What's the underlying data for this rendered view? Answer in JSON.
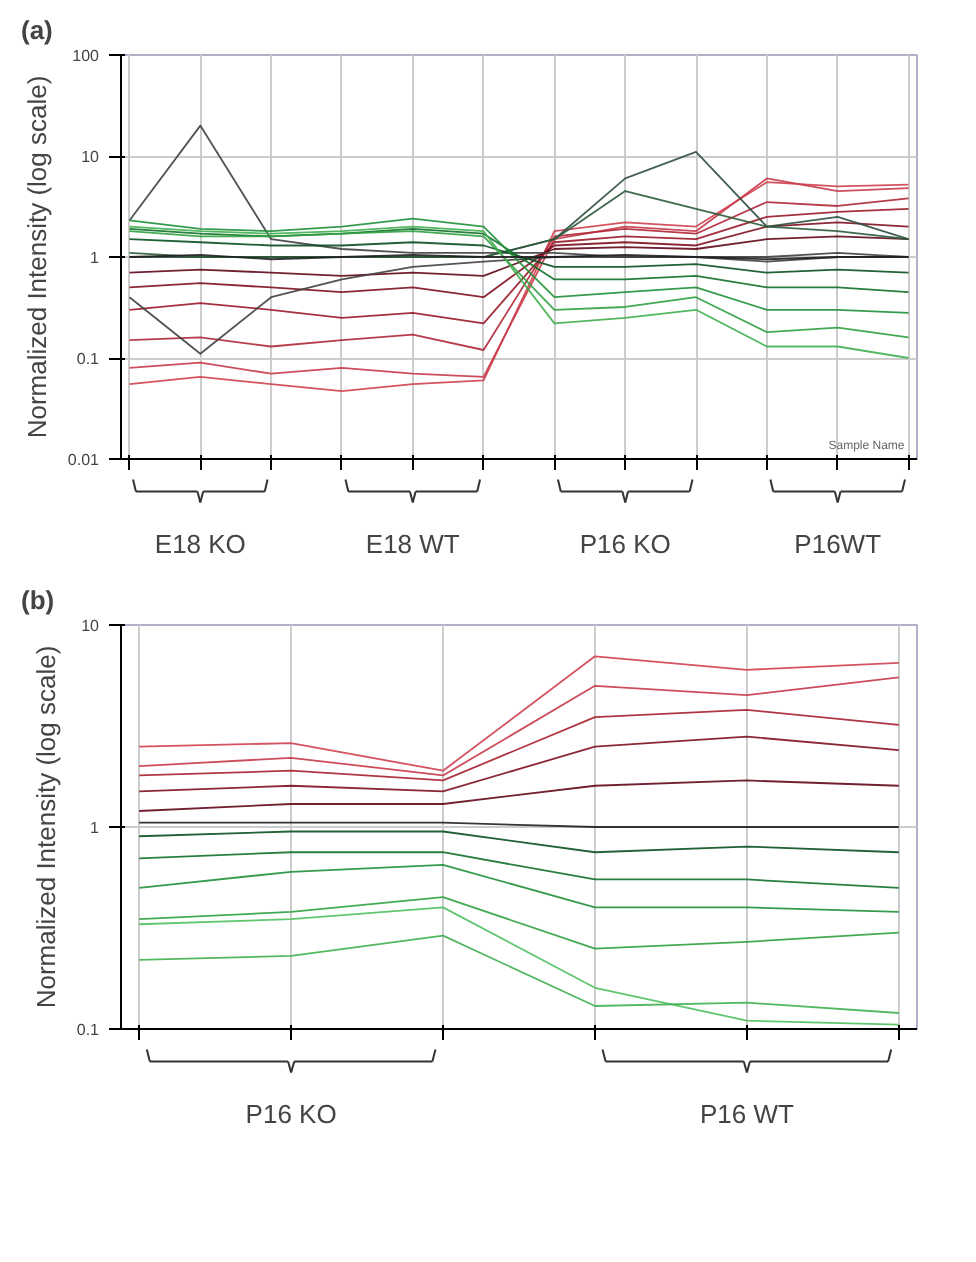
{
  "chart_data": [
    {
      "type": "line",
      "title": "(a)",
      "ylabel": "Normalized Intensity (log scale)",
      "xlabel": "Sample Name",
      "categories": [
        null,
        null,
        null,
        null,
        null,
        null,
        null,
        null,
        null,
        null,
        null,
        null
      ],
      "log": true,
      "grid": true,
      "ylim": [
        0.01,
        100
      ],
      "yticks": [
        0.01,
        0.1,
        1,
        10,
        100
      ],
      "annotations": [
        "E18 KO",
        "E18 WT",
        "P16 KO",
        "P16WT"
      ],
      "series": [
        {
          "color": "#d04050",
          "values": [
            0.055,
            0.065,
            0.055,
            0.047,
            0.055,
            0.06,
            1.8,
            2.2,
            2.0,
            5.5,
            5.0,
            5.2
          ]
        },
        {
          "color": "#c83a4a",
          "values": [
            0.08,
            0.09,
            0.07,
            0.08,
            0.07,
            0.065,
            1.5,
            2.0,
            1.8,
            6,
            4.5,
            4.8
          ]
        },
        {
          "color": "#b02838",
          "values": [
            0.15,
            0.16,
            0.13,
            0.15,
            0.17,
            0.12,
            1.6,
            1.9,
            1.7,
            3.5,
            3.2,
            3.8
          ]
        },
        {
          "color": "#9a1a28",
          "values": [
            0.3,
            0.35,
            0.3,
            0.25,
            0.28,
            0.22,
            1.4,
            1.6,
            1.5,
            2.5,
            2.8,
            3.0
          ]
        },
        {
          "color": "#801020",
          "values": [
            0.5,
            0.55,
            0.5,
            0.45,
            0.5,
            0.4,
            1.3,
            1.4,
            1.3,
            2.0,
            2.2,
            2.0
          ]
        },
        {
          "color": "#600818",
          "values": [
            0.7,
            0.75,
            0.7,
            0.65,
            0.7,
            0.65,
            1.2,
            1.25,
            1.2,
            1.5,
            1.6,
            1.5
          ]
        },
        {
          "color": "#404040",
          "values": [
            2.3,
            20,
            1.5,
            1.2,
            1.1,
            1.1,
            1.1,
            1.0,
            1.0,
            0.9,
            1.0,
            1.0
          ]
        },
        {
          "color": "#404040",
          "values": [
            0.4,
            0.11,
            0.4,
            0.6,
            0.8,
            0.9,
            1.0,
            1.0,
            1.0,
            1.0,
            1.1,
            1.0
          ]
        },
        {
          "color": "#305040",
          "values": [
            1.0,
            1.0,
            1.0,
            1.0,
            1.0,
            1.0,
            1.5,
            6,
            11,
            2,
            2.5,
            1.5
          ]
        },
        {
          "color": "#2a5a3a",
          "values": [
            1.1,
            1.0,
            1.0,
            1.0,
            1.0,
            1.0,
            1.5,
            4.5,
            3,
            2.0,
            1.8,
            1.5
          ]
        },
        {
          "color": "#0a5020",
          "values": [
            1.5,
            1.4,
            1.3,
            1.3,
            1.4,
            1.3,
            0.8,
            0.8,
            0.85,
            0.7,
            0.75,
            0.7
          ]
        },
        {
          "color": "#107028",
          "values": [
            1.9,
            1.7,
            1.6,
            1.7,
            1.9,
            1.7,
            0.6,
            0.6,
            0.65,
            0.5,
            0.5,
            0.45
          ]
        },
        {
          "color": "#209038",
          "values": [
            2.3,
            1.9,
            1.8,
            2.0,
            2.4,
            2.0,
            0.4,
            0.45,
            0.5,
            0.3,
            0.3,
            0.28
          ]
        },
        {
          "color": "#30a040",
          "values": [
            1.8,
            1.6,
            1.6,
            1.7,
            1.8,
            1.6,
            0.3,
            0.32,
            0.4,
            0.18,
            0.2,
            0.16
          ]
        },
        {
          "color": "#40b050",
          "values": [
            2.0,
            1.8,
            1.7,
            1.8,
            2.0,
            1.8,
            0.22,
            0.25,
            0.3,
            0.13,
            0.13,
            0.1
          ]
        },
        {
          "color": "#202020",
          "values": [
            1.0,
            1.05,
            0.95,
            1.0,
            1.05,
            1.0,
            1.0,
            1.05,
            1.0,
            0.95,
            1.0,
            1.0
          ]
        }
      ]
    },
    {
      "type": "line",
      "title": "(b)",
      "ylabel": "Normalized Intensity (log scale)",
      "categories": [
        null,
        null,
        null,
        null,
        null,
        null
      ],
      "log": true,
      "grid": true,
      "ylim": [
        0.1,
        10
      ],
      "yticks": [
        0.1,
        1,
        10
      ],
      "annotations": [
        "P16 KO",
        "P16 WT"
      ],
      "series": [
        {
          "color": "#d04050",
          "values": [
            2.5,
            2.6,
            1.9,
            7,
            6,
            6.5
          ]
        },
        {
          "color": "#c83a4a",
          "values": [
            2.0,
            2.2,
            1.8,
            5,
            4.5,
            5.5
          ]
        },
        {
          "color": "#a82030",
          "values": [
            1.8,
            1.9,
            1.7,
            3.5,
            3.8,
            3.2
          ]
        },
        {
          "color": "#801020",
          "values": [
            1.5,
            1.6,
            1.5,
            2.5,
            2.8,
            2.4
          ]
        },
        {
          "color": "#600818",
          "values": [
            1.2,
            1.3,
            1.3,
            1.6,
            1.7,
            1.6
          ]
        },
        {
          "color": "#202020",
          "values": [
            1.05,
            1.05,
            1.05,
            1.0,
            1.0,
            1.0
          ]
        },
        {
          "color": "#0a5020",
          "values": [
            0.9,
            0.95,
            0.95,
            0.75,
            0.8,
            0.75
          ]
        },
        {
          "color": "#107028",
          "values": [
            0.7,
            0.75,
            0.75,
            0.55,
            0.55,
            0.5
          ]
        },
        {
          "color": "#209038",
          "values": [
            0.5,
            0.6,
            0.65,
            0.4,
            0.4,
            0.38
          ]
        },
        {
          "color": "#30a040",
          "values": [
            0.35,
            0.38,
            0.45,
            0.25,
            0.27,
            0.3
          ]
        },
        {
          "color": "#50c060",
          "values": [
            0.33,
            0.35,
            0.4,
            0.16,
            0.11,
            0.105
          ]
        },
        {
          "color": "#40b050",
          "values": [
            0.22,
            0.23,
            0.29,
            0.13,
            0.135,
            0.12
          ]
        }
      ]
    }
  ]
}
